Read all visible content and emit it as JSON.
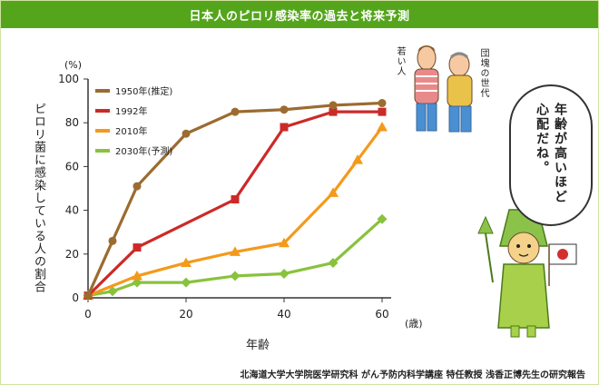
{
  "title": "日本人のピロリ感染率の過去と将来予測",
  "credit": "北海道大学大学院医学研究科 がん予防内科学講座 特任教授 浅香正博先生の研究報告",
  "characters": {
    "young_label": "若い人",
    "elder_label": "団塊の世代",
    "speech": "年齢が高いほど心配だね。"
  },
  "chart_data": {
    "type": "line",
    "ylabel": "ピロリ菌に感染している人の割合",
    "yunit": "(%)",
    "xlabel": "年齢",
    "xunit": "(歳)",
    "xlim": [
      0,
      60
    ],
    "ylim": [
      0,
      100
    ],
    "xticks": [
      "0",
      "20",
      "40",
      "60"
    ],
    "yticks": [
      "0",
      "20",
      "40",
      "60",
      "80",
      "100"
    ],
    "legend_position": "top-left",
    "grid": false,
    "series": [
      {
        "name": "1950年(推定)",
        "color": "#9b6b30",
        "marker": "circle",
        "x": [
          0,
          5,
          10,
          20,
          30,
          40,
          50,
          60
        ],
        "y": [
          1,
          26,
          51,
          75,
          85,
          86,
          88,
          89
        ]
      },
      {
        "name": "1992年",
        "color": "#cc2a28",
        "marker": "square",
        "x": [
          0,
          10,
          30,
          40,
          50,
          60
        ],
        "y": [
          1,
          23,
          45,
          78,
          85,
          85
        ]
      },
      {
        "name": "2010年",
        "color": "#f39a1b",
        "marker": "triangle",
        "x": [
          0,
          10,
          20,
          30,
          40,
          50,
          55,
          60
        ],
        "y": [
          1,
          10,
          16,
          21,
          25,
          48,
          63,
          78
        ]
      },
      {
        "name": "2030年(予測)",
        "color": "#89c23c",
        "marker": "diamond",
        "x": [
          0,
          5,
          10,
          20,
          30,
          40,
          50,
          60
        ],
        "y": [
          1,
          3,
          7,
          7,
          10,
          11,
          16,
          36
        ]
      }
    ]
  }
}
